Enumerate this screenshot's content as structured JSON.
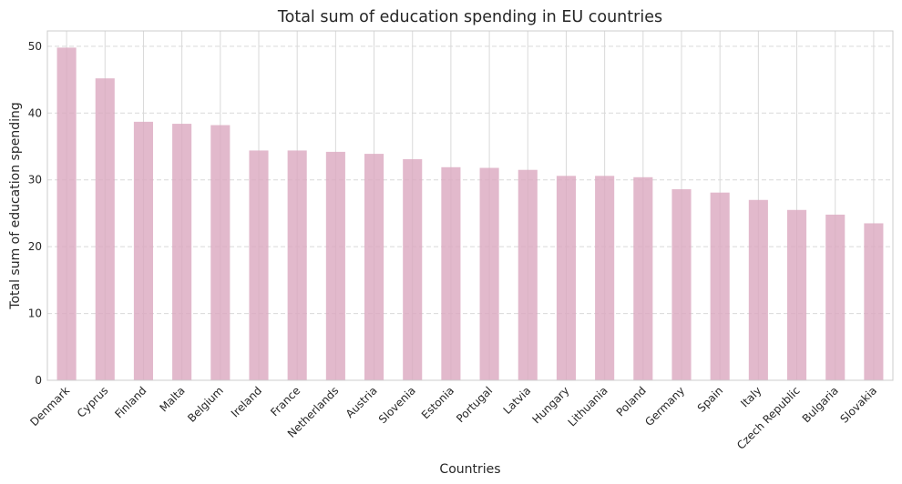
{
  "chart_data": {
    "type": "bar",
    "title": "Total sum of education spending in EU countries",
    "xlabel": "Countries",
    "ylabel": "Total sum of education spending",
    "categories": [
      "Denmark",
      "Cyprus",
      "Finland",
      "Malta",
      "Belgium",
      "Ireland",
      "France",
      "Netherlands",
      "Austria",
      "Slovenia",
      "Estonia",
      "Portugal",
      "Latvia",
      "Hungary",
      "Lithuania",
      "Poland",
      "Germany",
      "Spain",
      "Italy",
      "Czech Republic",
      "Bulgaria",
      "Slovakia"
    ],
    "values": [
      49.8,
      45.2,
      38.7,
      38.4,
      38.2,
      34.4,
      34.4,
      34.2,
      33.9,
      33.1,
      31.9,
      31.8,
      31.5,
      30.6,
      30.6,
      30.4,
      28.6,
      28.1,
      27.0,
      25.5,
      24.8,
      23.5
    ],
    "yticks": [
      0,
      10,
      20,
      30,
      40,
      50
    ],
    "ylim": [
      0,
      52.3
    ],
    "grid": true,
    "bar_color": "#dba7bf"
  }
}
